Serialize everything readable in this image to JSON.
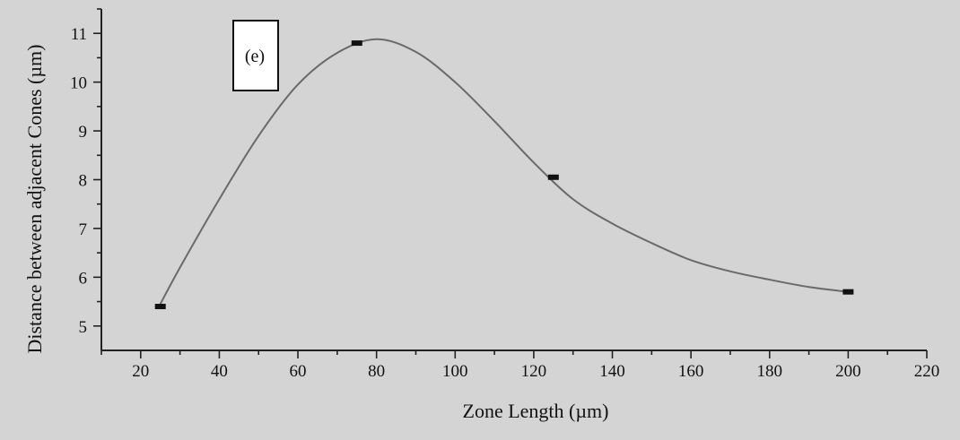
{
  "chart_data": {
    "type": "line",
    "xlabel": "Zone Length (µm)",
    "ylabel": "Distance between adjacent Cones (µm)",
    "panel_label": "(e)",
    "xlim": [
      10,
      220
    ],
    "ylim": [
      4.5,
      11.5
    ],
    "x_ticks": [
      20,
      40,
      60,
      80,
      100,
      120,
      140,
      160,
      180,
      200,
      220
    ],
    "y_ticks": [
      5,
      6,
      7,
      8,
      9,
      10,
      11
    ],
    "grid": false,
    "series": [
      {
        "points": [
          {
            "x": 25,
            "y": 5.4
          },
          {
            "x": 75,
            "y": 10.8
          },
          {
            "x": 125,
            "y": 8.05
          },
          {
            "x": 200,
            "y": 5.7
          }
        ],
        "fit_curve": [
          {
            "x": 25,
            "y": 5.45
          },
          {
            "x": 30,
            "y": 6.2
          },
          {
            "x": 40,
            "y": 7.6
          },
          {
            "x": 50,
            "y": 8.9
          },
          {
            "x": 60,
            "y": 9.95
          },
          {
            "x": 70,
            "y": 10.6
          },
          {
            "x": 80,
            "y": 10.88
          },
          {
            "x": 90,
            "y": 10.62
          },
          {
            "x": 100,
            "y": 10.0
          },
          {
            "x": 110,
            "y": 9.2
          },
          {
            "x": 120,
            "y": 8.35
          },
          {
            "x": 130,
            "y": 7.6
          },
          {
            "x": 140,
            "y": 7.1
          },
          {
            "x": 150,
            "y": 6.7
          },
          {
            "x": 160,
            "y": 6.35
          },
          {
            "x": 170,
            "y": 6.12
          },
          {
            "x": 180,
            "y": 5.95
          },
          {
            "x": 190,
            "y": 5.8
          },
          {
            "x": 200,
            "y": 5.7
          }
        ]
      }
    ],
    "colors": {
      "background": "#d4d4d4",
      "axis": "#222222",
      "curve": "#6a6a6a",
      "marker": "#111111",
      "label_box_fill": "#ffffff"
    }
  }
}
